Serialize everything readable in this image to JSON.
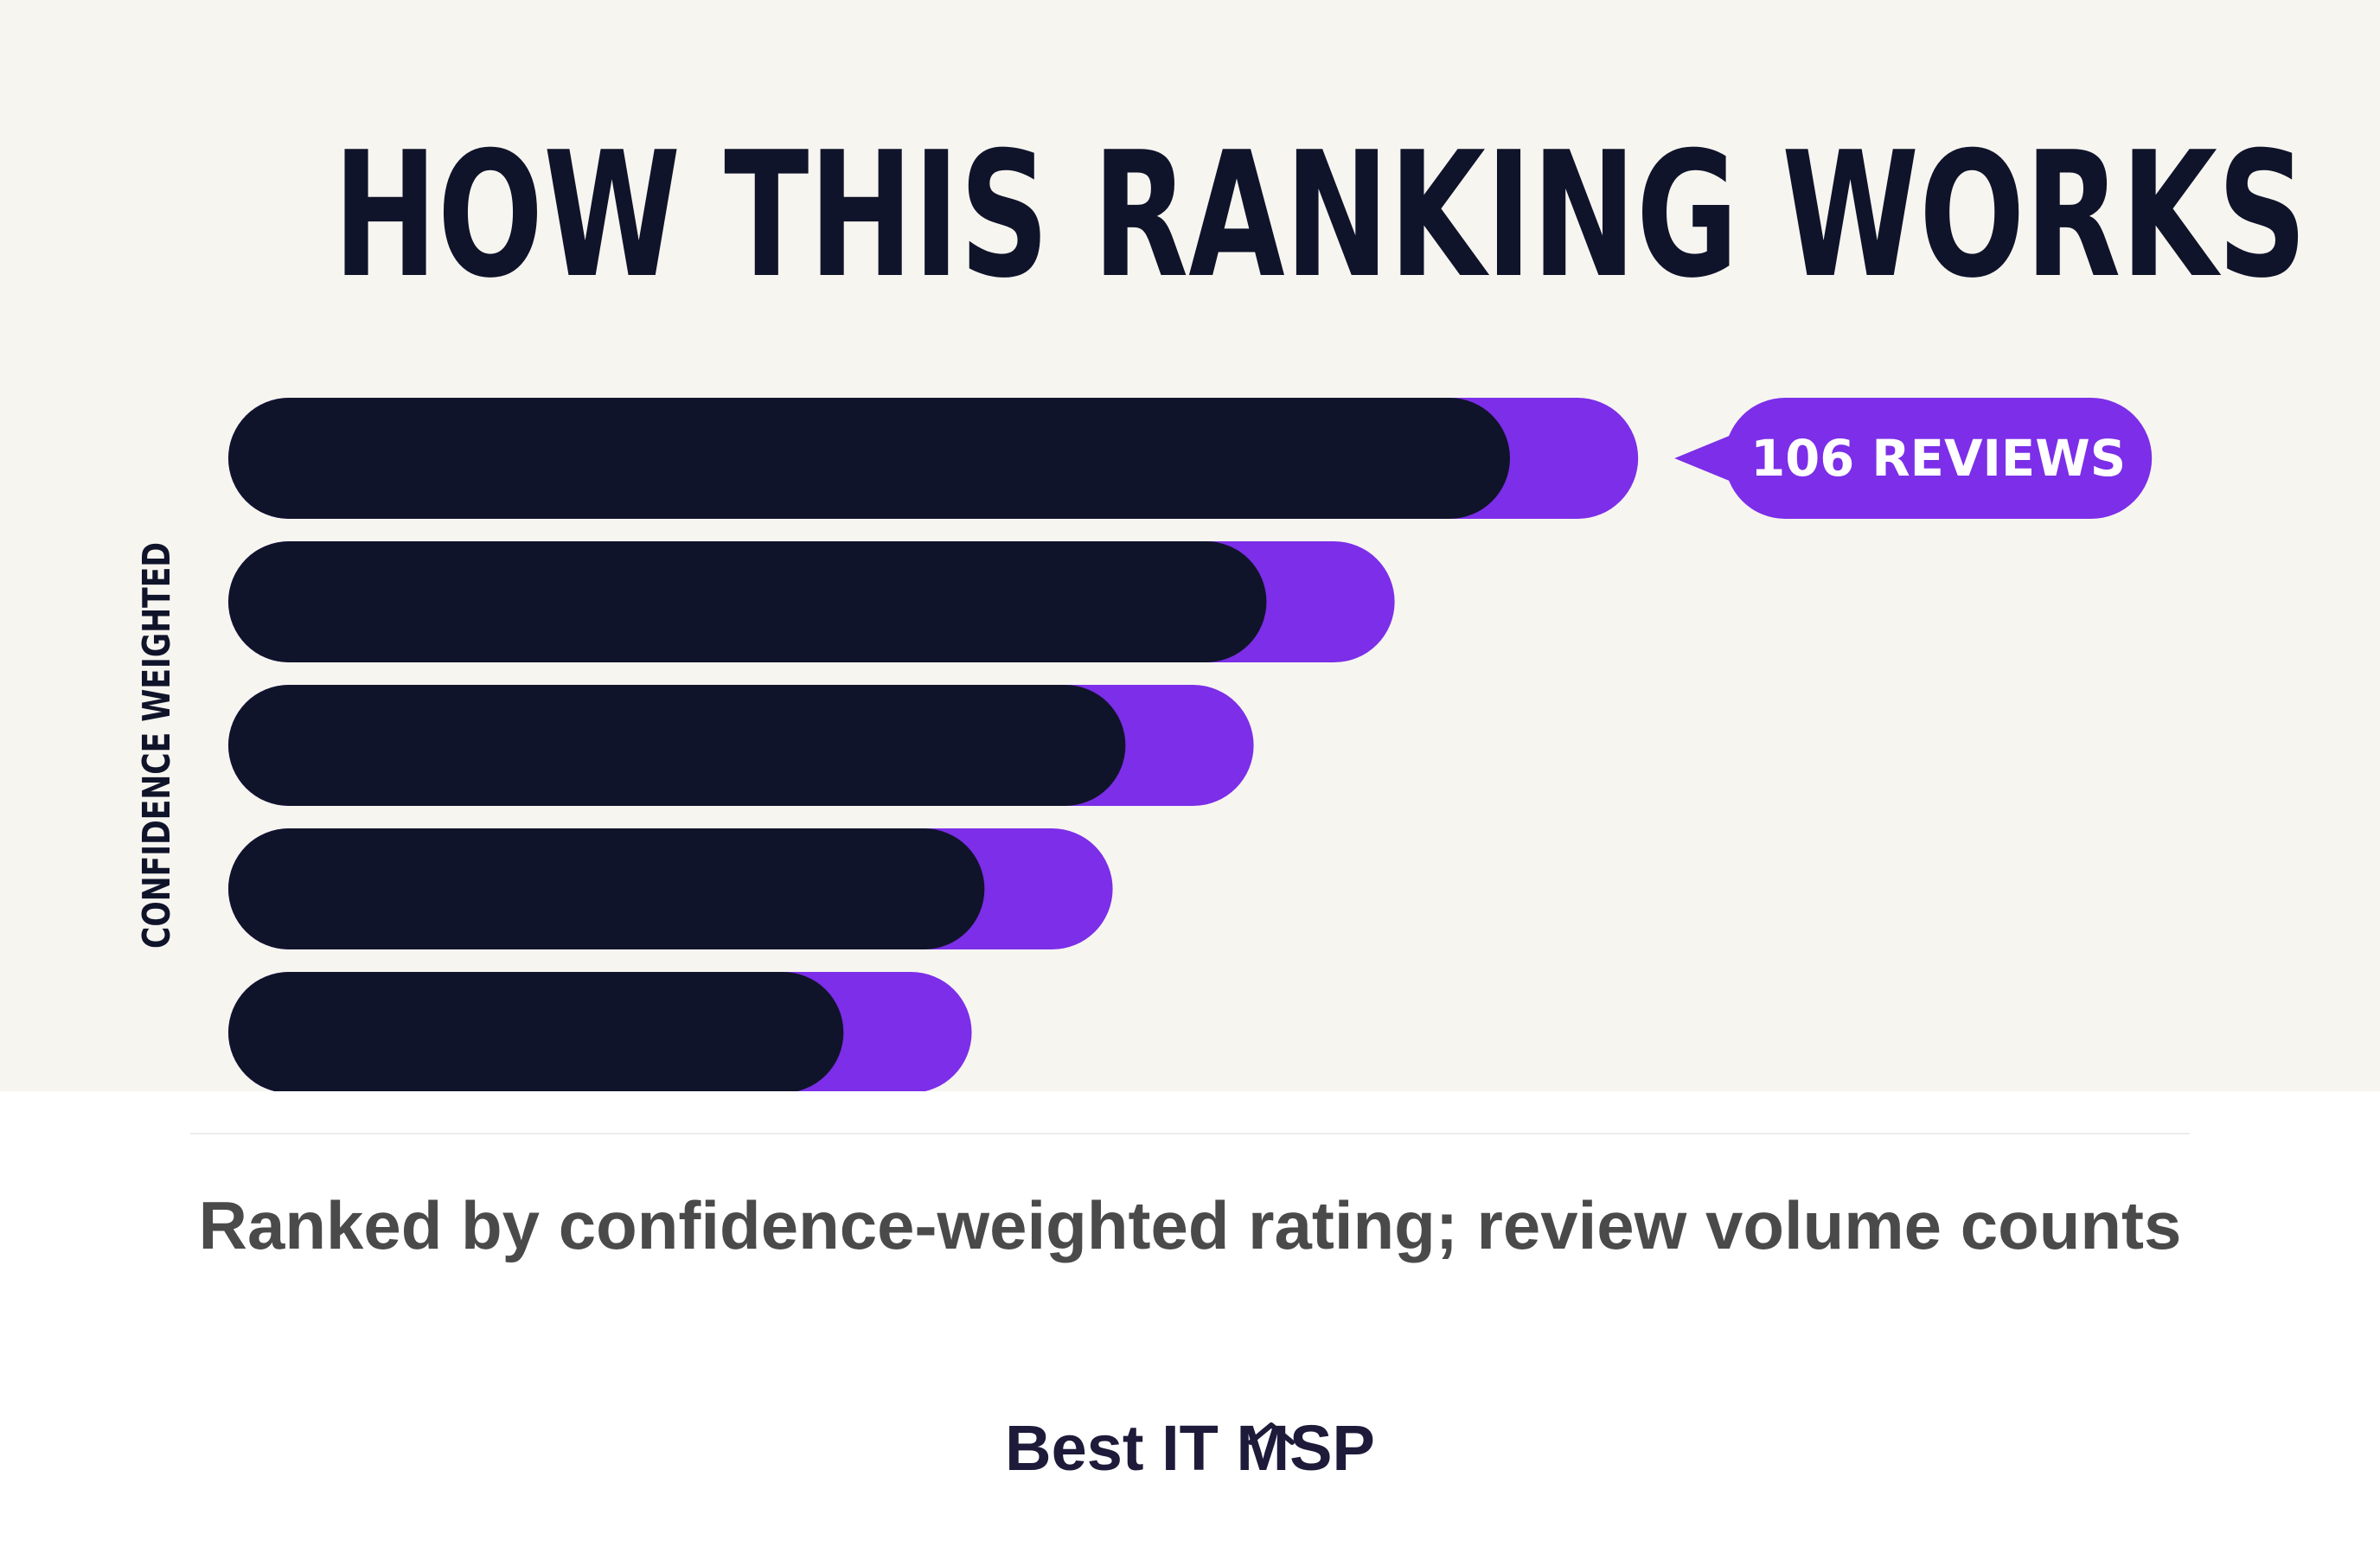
{
  "header": {
    "title": "HOW THIS RANKING WORKS"
  },
  "chart_data": {
    "type": "bar",
    "orientation": "horizontal",
    "ylabel": "CONFIDENCE WEIGHTED",
    "series": [
      {
        "name": "confidence-weighted rating",
        "color": "#10142a",
        "values": [
          100,
          81,
          70,
          59,
          48
        ]
      },
      {
        "name": "review volume",
        "color": "#7c2ee8",
        "values": [
          10,
          10,
          10,
          10,
          10
        ]
      }
    ],
    "annotation": {
      "label": "106 REVIEWS",
      "bar_index": 0,
      "color": "#7c2ee8"
    },
    "legend": "none",
    "grid": false
  },
  "caption": {
    "text": "Ranked by confidence-weighted rating; review volume counts"
  },
  "footer": {
    "brand": "Best IT MSP",
    "accent": "#1e1a3a"
  }
}
